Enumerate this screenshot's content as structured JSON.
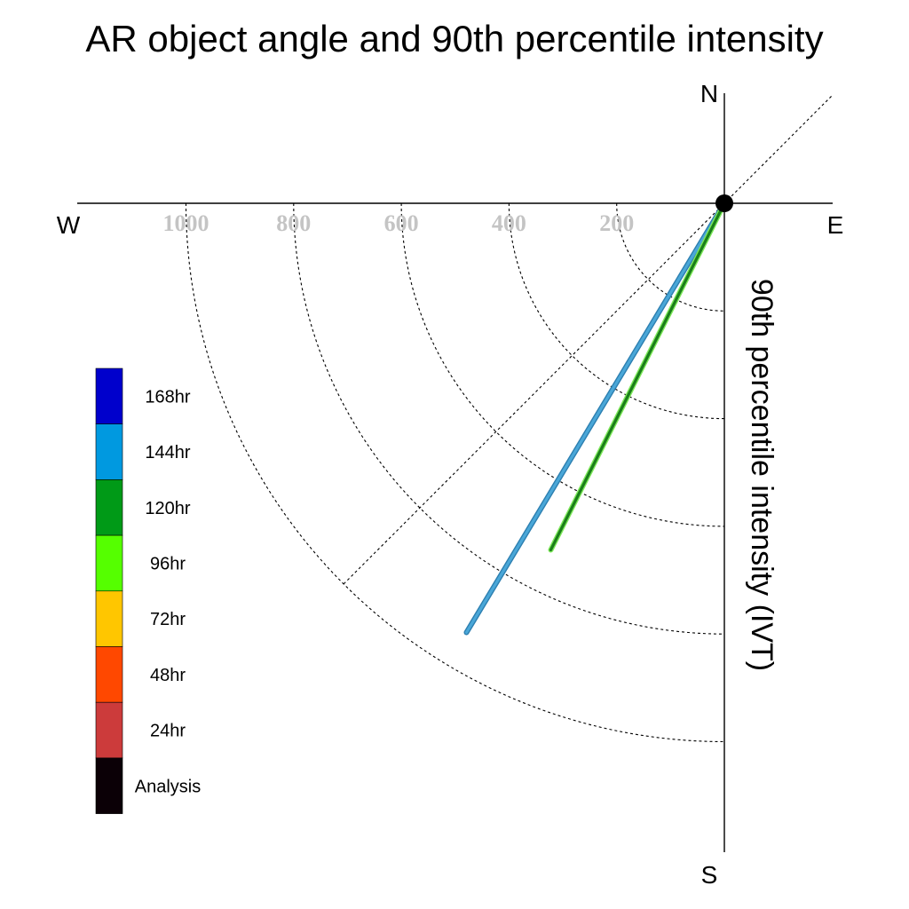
{
  "chart_data": {
    "type": "polar-quadrant-line",
    "title": "AR object angle and 90th percentile intensity",
    "ylabel": "90th percentile intensity (IVT)",
    "compass": {
      "north": "N",
      "south": "S",
      "east": "E",
      "west": "W"
    },
    "radial_ticks": [
      200,
      400,
      600,
      800,
      1000
    ],
    "radial_range": [
      0,
      1200
    ],
    "series": [
      {
        "name": "144hr",
        "color": "#4aa7d8",
        "edge": "#2d7fb0",
        "angle_deg": 211.0,
        "intensity": 930
      },
      {
        "name": "120hr",
        "color": "#1a7f1a",
        "edge": "#7ee85a",
        "angle_deg": 206.6,
        "intensity": 720
      }
    ],
    "legend": [
      {
        "label": "168hr",
        "color": "#0000cc"
      },
      {
        "label": "144hr",
        "color": "#0099e0"
      },
      {
        "label": "120hr",
        "color": "#009a17"
      },
      {
        "label": "96hr",
        "color": "#55ff00"
      },
      {
        "label": "72hr",
        "color": "#ffc600"
      },
      {
        "label": "48hr",
        "color": "#ff4800"
      },
      {
        "label": "24hr",
        "color": "#cc3b3b"
      },
      {
        "label": "Analysis",
        "color": "#0b0006"
      }
    ]
  }
}
